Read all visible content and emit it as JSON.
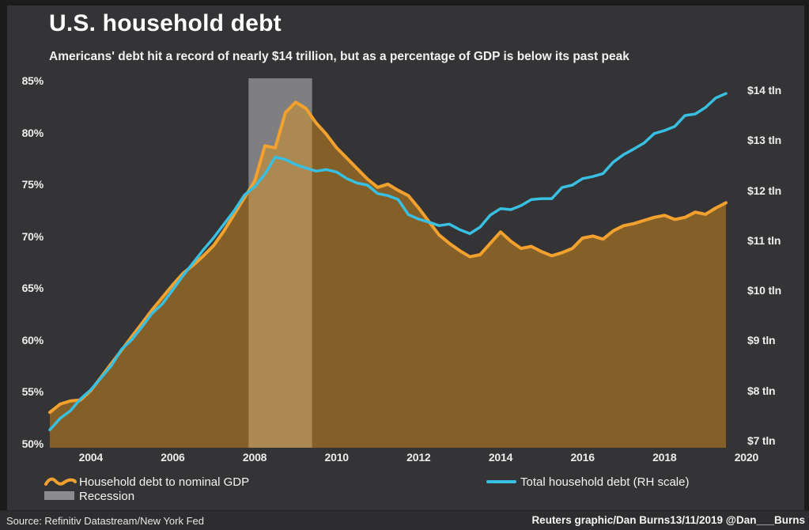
{
  "header": {
    "title": "U.S. household debt",
    "subtitle": "Americans' debt hit a record of nearly $14 trillion, but as a percentage of GDP is below its past peak"
  },
  "legend": {
    "items": [
      {
        "label": "Household debt to nominal GDP",
        "swatch": "orange-wave"
      },
      {
        "label": "Recession",
        "swatch": "gray-rect"
      },
      {
        "label": "Total household debt (RH scale)",
        "swatch": "cyan-line"
      }
    ]
  },
  "footer": {
    "source": "Source: Refinitiv Datastream/New York Fed",
    "credit": "Reuters graphic/Dan Burns13/11/2019 @Dan___Burns"
  },
  "colors": {
    "background": "#343436",
    "outer_border": "#1b1b1b",
    "gdp_line": "#F2A02E",
    "gdp_fill": "rgba(230,150,25,0.45)",
    "debt_line": "#38BFE1",
    "recession_band": "#7F7F82",
    "legend_gray": "#8C8C8E",
    "text": "#f2f2f2"
  },
  "chart_data": {
    "type": "area",
    "title": "U.S. household debt",
    "x_start": 2003.0,
    "x_step": 0.25,
    "x_end": 2019.5,
    "x_unit": "year (quarterly)",
    "series": [
      {
        "name": "Household debt to nominal GDP",
        "axis": "left",
        "unit": "% of GDP",
        "style": "area",
        "values": [
          53.1,
          53.9,
          54.2,
          54.3,
          55.2,
          56.5,
          57.8,
          59.1,
          60.4,
          61.7,
          63.0,
          64.2,
          65.4,
          66.5,
          67.3,
          68.2,
          69.2,
          70.6,
          72.2,
          73.8,
          75.4,
          78.8,
          78.6,
          82.0,
          83.0,
          82.4,
          81.0,
          79.9,
          78.6,
          77.6,
          76.6,
          75.6,
          74.8,
          75.1,
          74.5,
          74.0,
          72.8,
          71.5,
          70.2,
          69.4,
          68.7,
          68.1,
          68.3,
          69.4,
          70.5,
          69.6,
          68.9,
          69.1,
          68.6,
          68.2,
          68.5,
          68.9,
          69.9,
          70.1,
          69.8,
          70.6,
          71.1,
          71.3,
          71.6,
          71.9,
          72.1,
          71.7,
          71.9,
          72.4,
          72.2,
          72.8,
          73.3
        ]
      },
      {
        "name": "Total household debt (RH scale)",
        "axis": "right",
        "unit": "$ trillion",
        "style": "line",
        "values": [
          7.23,
          7.46,
          7.61,
          7.85,
          8.03,
          8.27,
          8.51,
          8.84,
          9.03,
          9.29,
          9.56,
          9.75,
          10.03,
          10.31,
          10.57,
          10.83,
          11.07,
          11.34,
          11.61,
          11.92,
          12.09,
          12.34,
          12.68,
          12.63,
          12.53,
          12.46,
          12.4,
          12.43,
          12.38,
          12.25,
          12.16,
          12.12,
          11.95,
          11.91,
          11.83,
          11.53,
          11.44,
          11.38,
          11.31,
          11.34,
          11.23,
          11.15,
          11.28,
          11.52,
          11.65,
          11.63,
          11.71,
          11.83,
          11.85,
          11.85,
          12.07,
          12.12,
          12.25,
          12.29,
          12.35,
          12.58,
          12.73,
          12.84,
          12.96,
          13.15,
          13.21,
          13.29,
          13.51,
          13.54,
          13.67,
          13.86,
          13.95
        ]
      }
    ],
    "left_axis": {
      "min": 50,
      "max": 85,
      "tick_values": [
        85,
        80,
        75,
        70,
        65,
        60,
        55,
        50
      ],
      "tick_labels": [
        "85%",
        "80%",
        "75%",
        "70%",
        "65%",
        "60%",
        "55%",
        "50%"
      ]
    },
    "right_axis": {
      "min": 7,
      "max": 14,
      "tick_values": [
        14,
        13,
        12,
        11,
        10,
        9,
        8,
        7
      ],
      "tick_labels": [
        "$14 tln",
        "$13 tln",
        "$12 tln",
        "$11 tln",
        "$10 tln",
        "$9 tln",
        "$8 tln",
        "$7 tln"
      ]
    },
    "x_axis": {
      "tick_values": [
        2004,
        2006,
        2008,
        2010,
        2012,
        2014,
        2016,
        2018,
        2020
      ],
      "tick_labels": [
        "2004",
        "2006",
        "2008",
        "2010",
        "2012",
        "2014",
        "2016",
        "2018",
        "2020"
      ]
    },
    "recession_bands": [
      {
        "start": 2007.85,
        "end": 2009.4,
        "label": "Recession"
      }
    ],
    "grid": "off",
    "legend_position": "bottom"
  }
}
